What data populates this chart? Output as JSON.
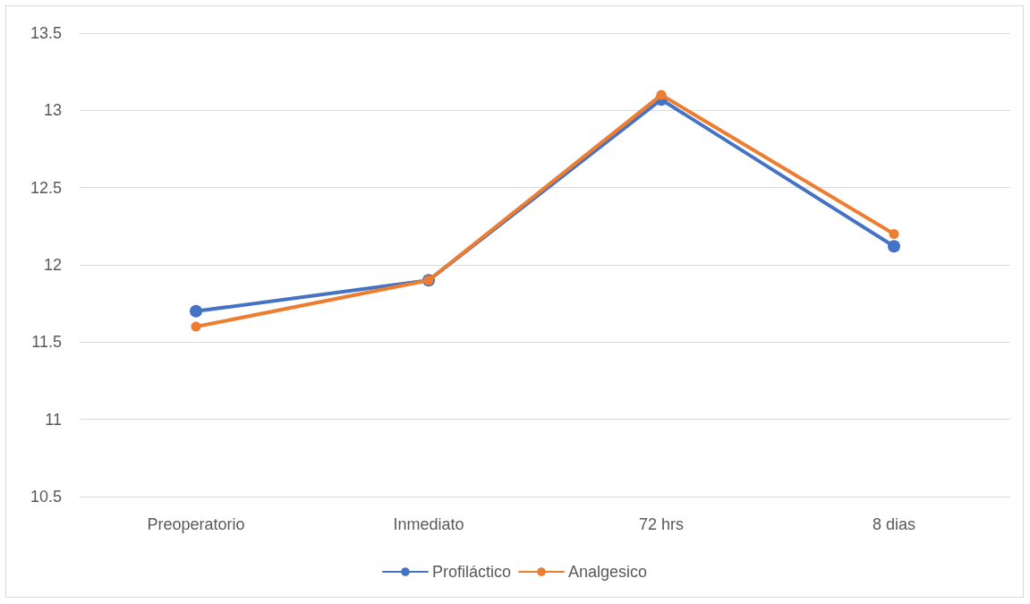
{
  "chart_data": {
    "type": "line",
    "categories": [
      "Preoperatorio",
      "Inmediato",
      "72 hrs",
      "8 dias"
    ],
    "series": [
      {
        "name": "Profiláctico",
        "color": "#4472c4",
        "values": [
          11.7,
          11.9,
          13.07,
          12.12
        ]
      },
      {
        "name": "Analgesico",
        "color": "#ed7d31",
        "values": [
          11.6,
          11.9,
          13.1,
          12.2
        ]
      }
    ],
    "ylim": [
      10.5,
      13.5
    ],
    "yticks": [
      10.5,
      11,
      11.5,
      12,
      12.5,
      13,
      13.5
    ],
    "grid": "y",
    "legend": "bottom",
    "marker": "circle",
    "line_style": "solid"
  }
}
